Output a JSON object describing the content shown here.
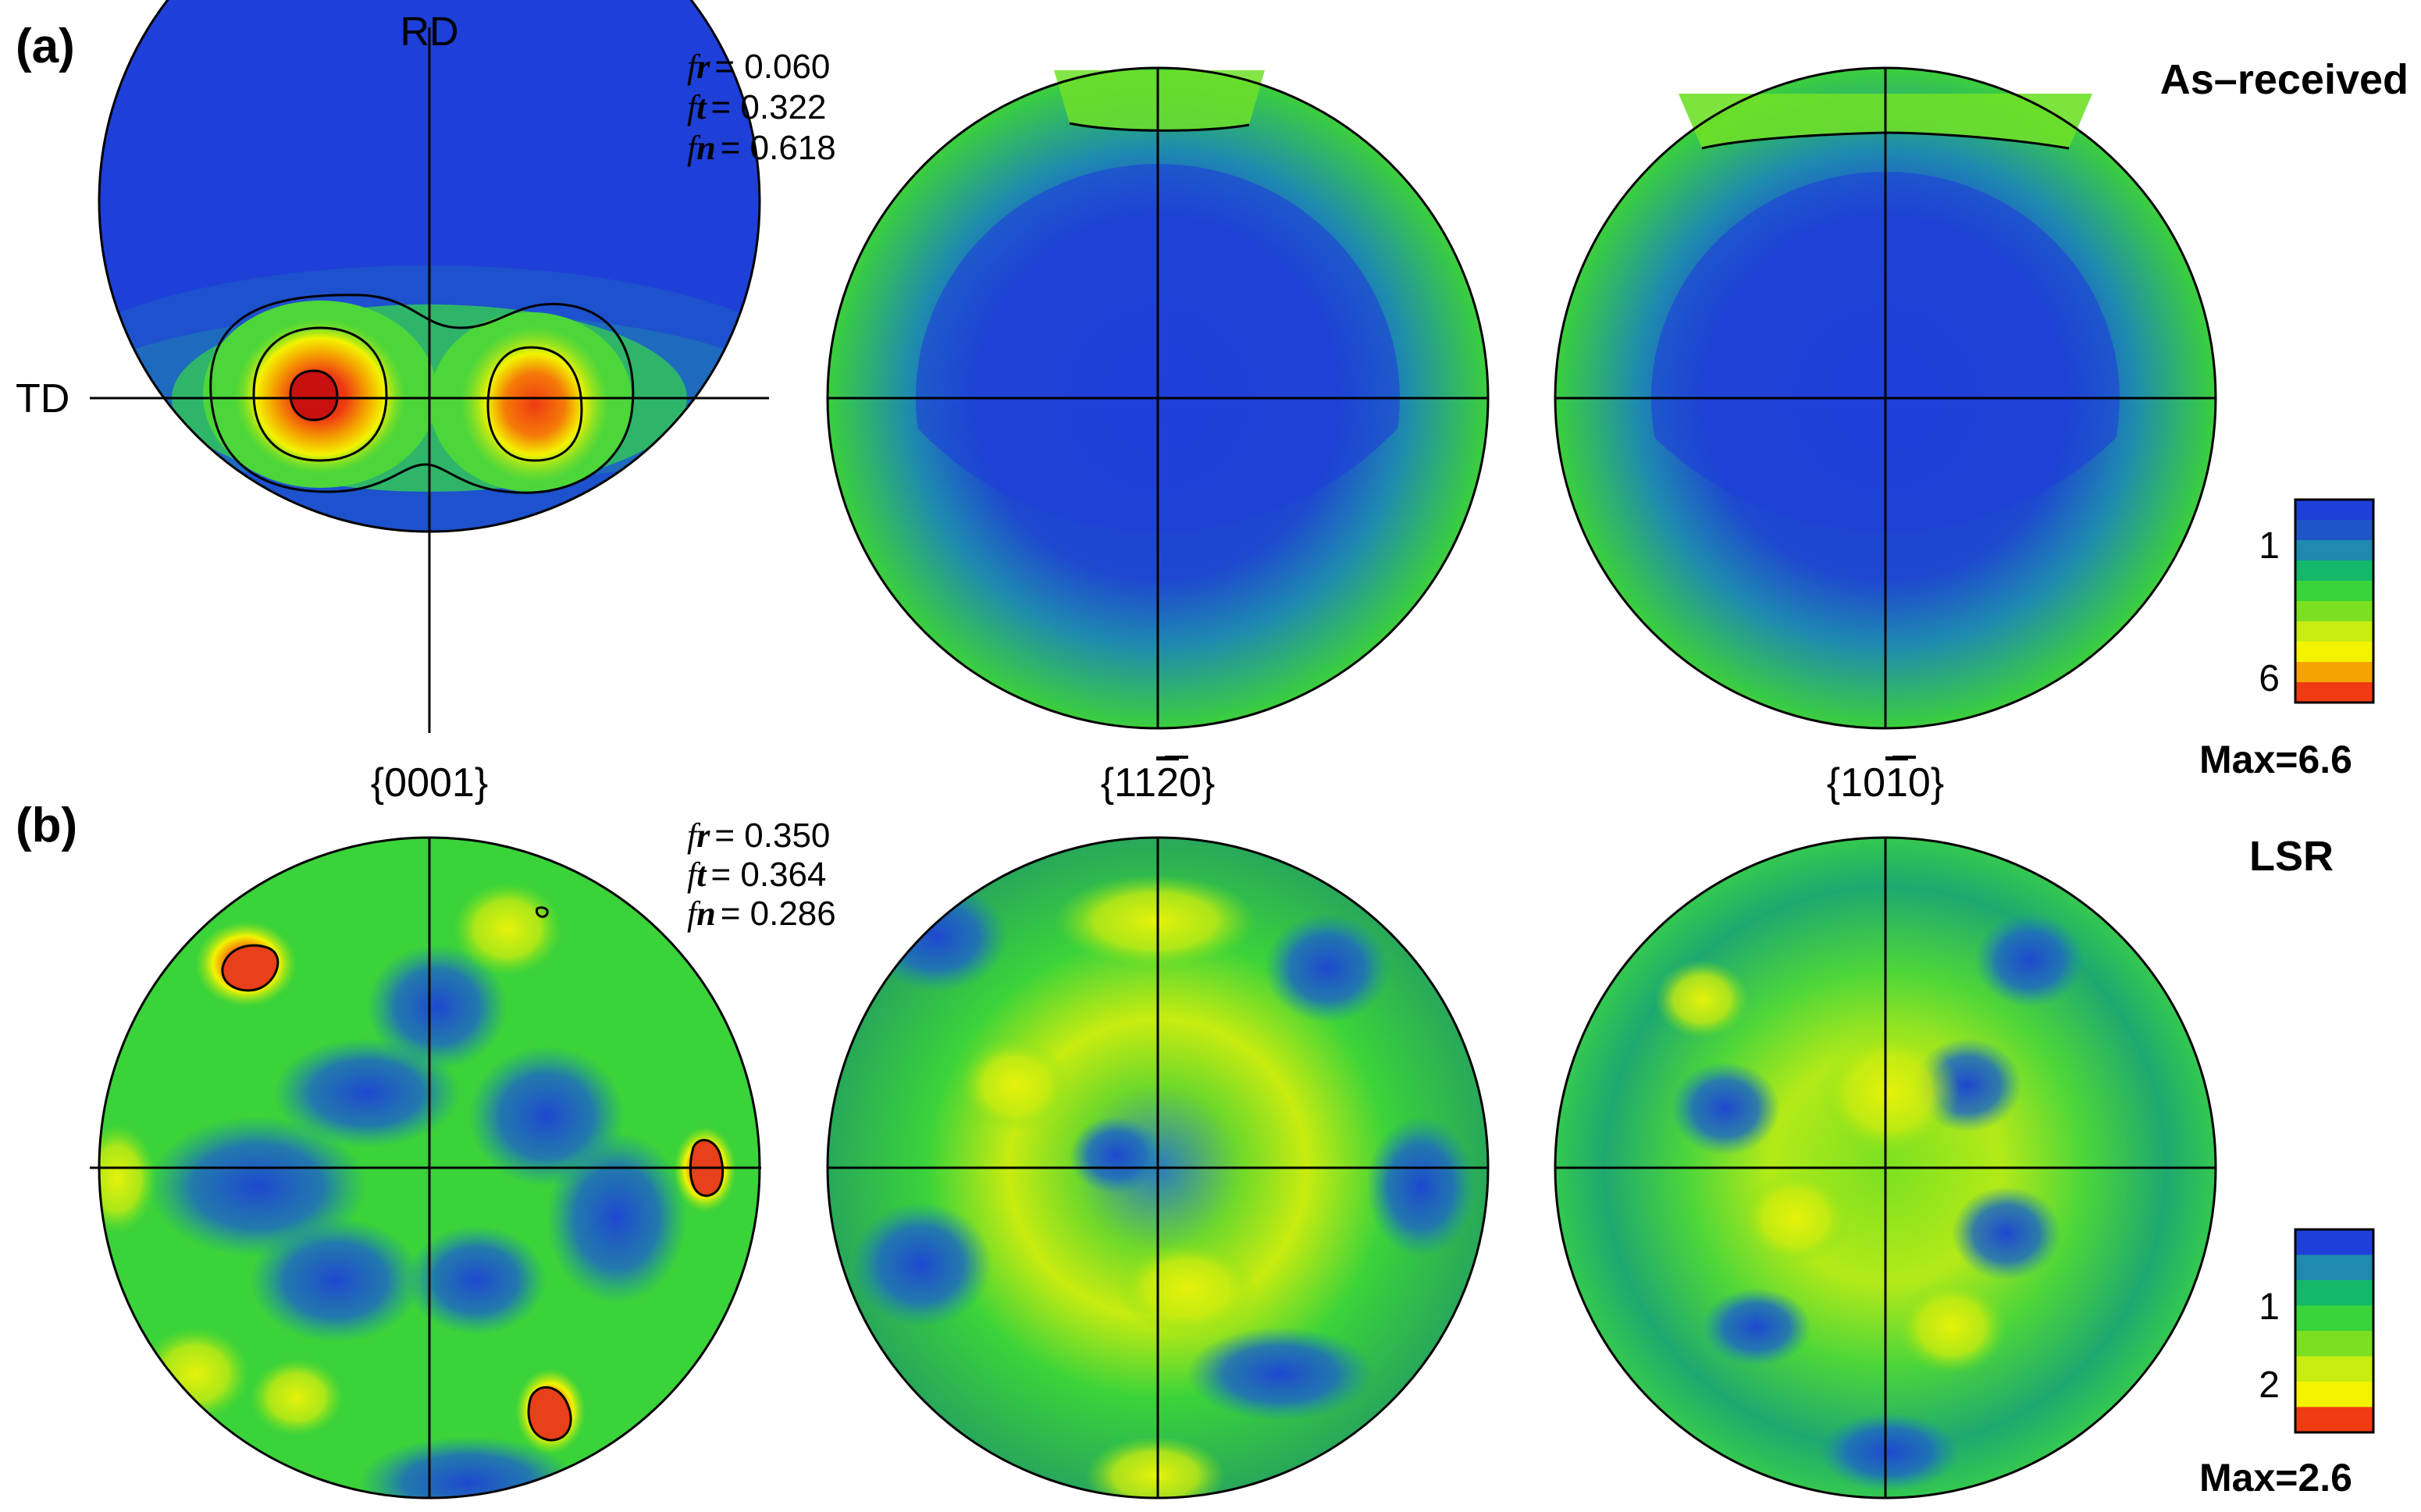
{
  "panels": [
    {
      "label": "(a)",
      "condition": "As–received",
      "fractions": [
        {
          "symbol": "f",
          "sub": "r",
          "value": "= 0.060"
        },
        {
          "symbol": "f",
          "sub": "t",
          "value": "= 0.322"
        },
        {
          "symbol": "f",
          "sub": "n",
          "value": "= 0.618"
        }
      ],
      "legend": {
        "ticks": [
          "1",
          "6"
        ],
        "max": "Max=6.6"
      },
      "colors": [
        "#1e3fd8",
        "#1e56c8",
        "#1e8ab0",
        "#15b86a",
        "#3ad33a",
        "#7ae021",
        "#c8ec10",
        "#f3f300",
        "#f5a300",
        "#ef3b12"
      ]
    },
    {
      "label": "(b)",
      "condition": "LSR",
      "fractions": [
        {
          "symbol": "f",
          "sub": "r",
          "value": "= 0.350"
        },
        {
          "symbol": "f",
          "sub": "t",
          "value": "= 0.364"
        },
        {
          "symbol": "f",
          "sub": "n",
          "value": "= 0.286"
        }
      ],
      "legend": {
        "ticks": [
          "1",
          "2"
        ],
        "max": "Max=2.6"
      },
      "colors": [
        "#1e3fd8",
        "#1e8ab0",
        "#15b86a",
        "#3ad33a",
        "#7ae021",
        "#c8ec10",
        "#f3f300",
        "#ef3b12"
      ]
    }
  ],
  "axes": {
    "rd": "RD",
    "td": "TD"
  },
  "poles": [
    "{0001}",
    "{11",
    "{10"
  ],
  "pole_bar_digit": [
    "2",
    "1"
  ],
  "pole_tail": [
    "0}",
    "0}"
  ]
}
